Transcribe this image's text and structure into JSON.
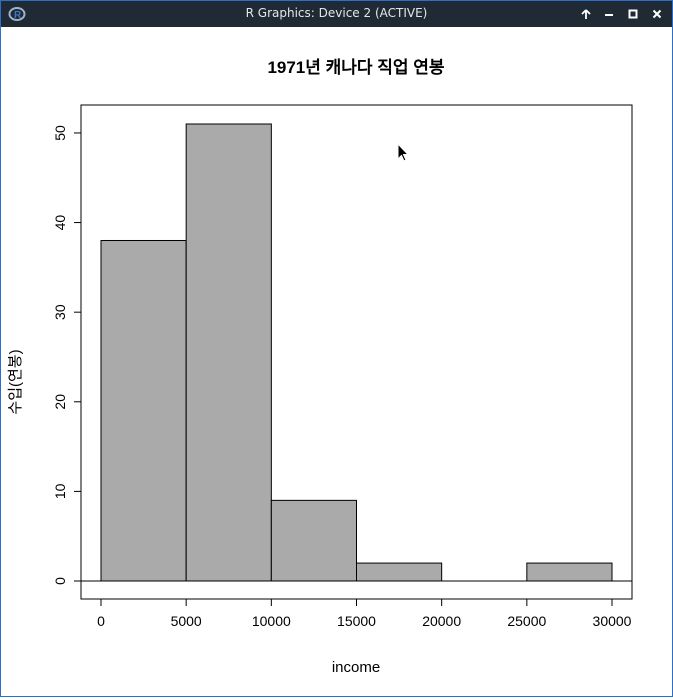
{
  "window": {
    "title": "R Graphics: Device 2 (ACTIVE)",
    "icon": "r-logo-icon",
    "controls": [
      "keep-above-icon",
      "minimize-icon",
      "maximize-icon",
      "close-icon"
    ],
    "titlebar_color": "#1f2a35",
    "border_color": "#2a6fc9"
  },
  "chart_data": {
    "type": "bar",
    "subtype": "histogram",
    "title": "1971년 캐나다 직업 연봉",
    "xlabel": "income",
    "ylabel": "수입(연봉)",
    "bins": [
      {
        "start": 0,
        "end": 5000,
        "count": 38
      },
      {
        "start": 5000,
        "end": 10000,
        "count": 51
      },
      {
        "start": 10000,
        "end": 15000,
        "count": 9
      },
      {
        "start": 15000,
        "end": 20000,
        "count": 2
      },
      {
        "start": 20000,
        "end": 25000,
        "count": 0
      },
      {
        "start": 25000,
        "end": 30000,
        "count": 2
      }
    ],
    "xlim": [
      0,
      30000
    ],
    "ylim": [
      0,
      51
    ],
    "x_ticks": [
      "0",
      "5000",
      "10000",
      "15000",
      "20000",
      "25000",
      "30000"
    ],
    "y_ticks": [
      "0",
      "10",
      "20",
      "30",
      "40",
      "50"
    ],
    "bar_fill": "#aaaaaa",
    "bar_stroke": "#000000",
    "grid": false
  }
}
